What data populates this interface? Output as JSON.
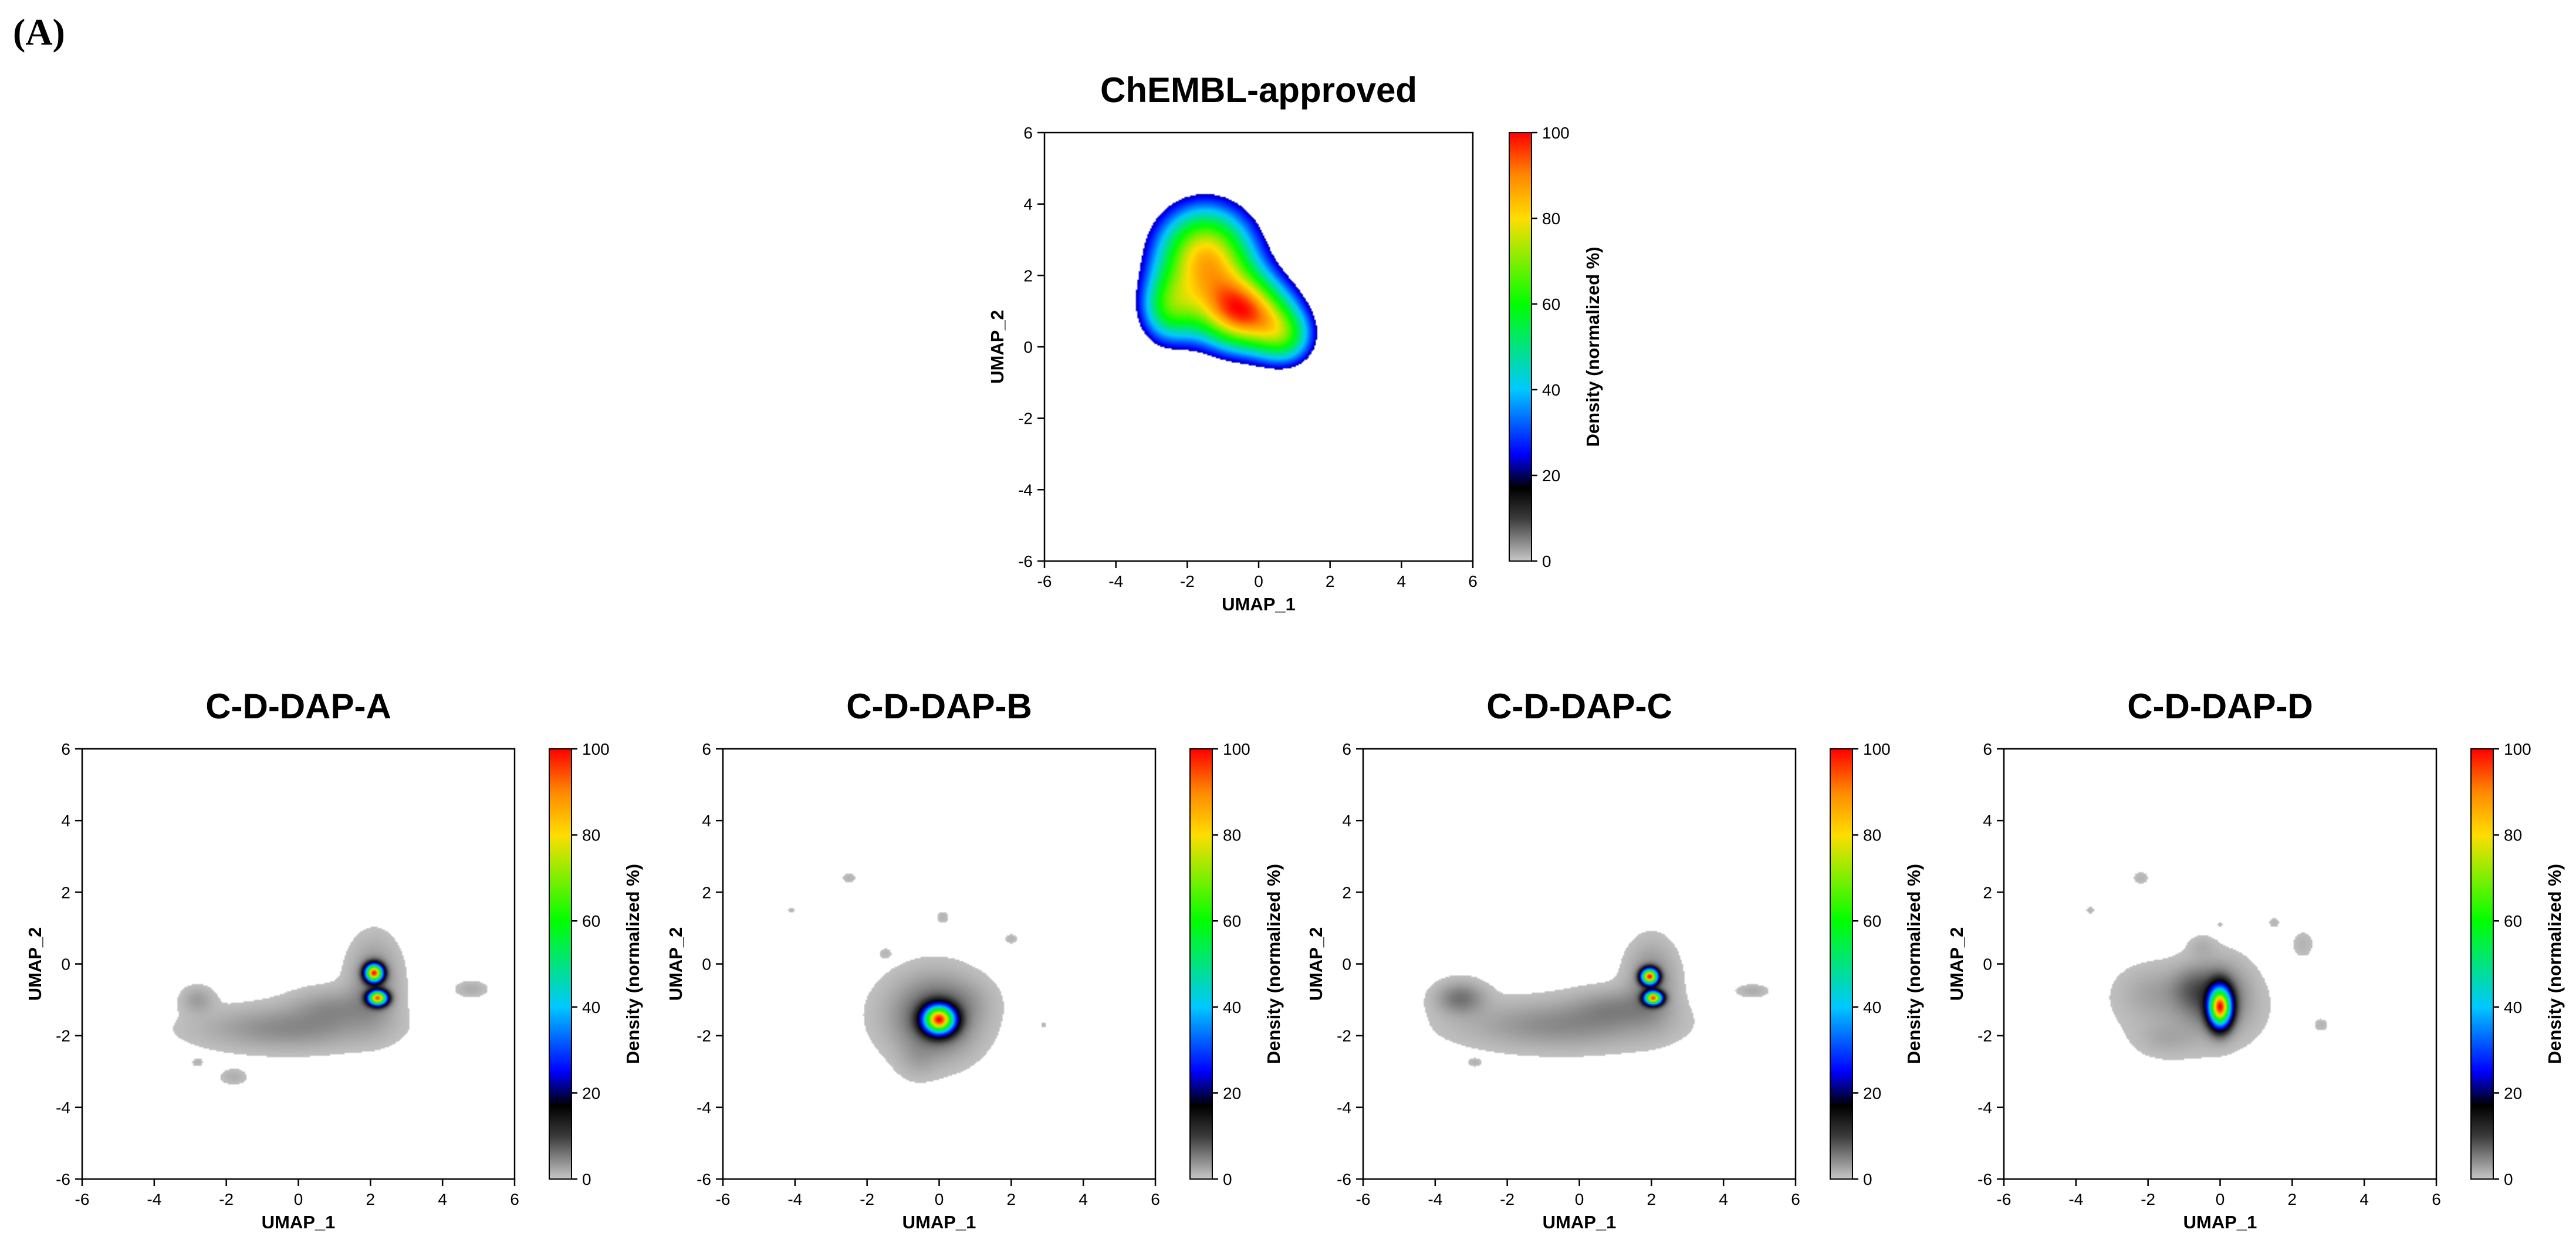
{
  "panel_label": "(A)",
  "colorscale": [
    {
      "v": 0,
      "c": "#c8c8c8"
    },
    {
      "v": 10,
      "c": "#3a3a3a"
    },
    {
      "v": 17,
      "c": "#000000"
    },
    {
      "v": 25,
      "c": "#0000ff"
    },
    {
      "v": 40,
      "c": "#00c8ff"
    },
    {
      "v": 60,
      "c": "#00ff00"
    },
    {
      "v": 80,
      "c": "#ffdd00"
    },
    {
      "v": 90,
      "c": "#ff8800"
    },
    {
      "v": 100,
      "c": "#ff0000"
    }
  ],
  "chart_data": [
    {
      "id": "chembl",
      "type": "heatmap",
      "title": "ChEMBL-approved",
      "xlabel": "UMAP_1",
      "ylabel": "UMAP_2",
      "xlim": [
        -6,
        6
      ],
      "ylim": [
        -6,
        6
      ],
      "xticks": [
        -6,
        -4,
        -2,
        0,
        2,
        4,
        6
      ],
      "yticks": [
        -6,
        -4,
        -2,
        0,
        2,
        4,
        6
      ],
      "colorbar": {
        "label": "Density (normalized %)",
        "ticks": [
          0,
          20,
          40,
          60,
          80,
          100
        ],
        "range": [
          0,
          100
        ]
      },
      "threshold": 0.22,
      "components": [
        {
          "x": -1.5,
          "y": 2.6,
          "sx": 1.05,
          "sy": 1.05,
          "w": 0.85
        },
        {
          "x": -0.4,
          "y": 0.9,
          "sx": 1.0,
          "sy": 0.8,
          "w": 0.9
        },
        {
          "x": -2.6,
          "y": 1.0,
          "sx": 0.6,
          "sy": 0.75,
          "w": 0.45
        },
        {
          "x": 0.8,
          "y": 0.2,
          "sx": 0.6,
          "sy": 0.6,
          "w": 0.4
        }
      ]
    },
    {
      "id": "dap_a",
      "type": "heatmap",
      "title": "C-D-DAP-A",
      "xlabel": "UMAP_1",
      "ylabel": "UMAP_2",
      "xlim": [
        -6,
        6
      ],
      "ylim": [
        -6,
        6
      ],
      "xticks": [
        -6,
        -4,
        -2,
        0,
        2,
        4,
        6
      ],
      "yticks": [
        -6,
        -4,
        -2,
        0,
        2,
        4,
        6
      ],
      "colorbar": {
        "label": "Density (normalized %)",
        "ticks": [
          0,
          20,
          40,
          60,
          80,
          100
        ],
        "range": [
          0,
          100
        ]
      },
      "threshold": 0.006,
      "components": [
        {
          "x": 2.1,
          "y": -0.25,
          "sx": 0.16,
          "sy": 0.16,
          "w": 1.0
        },
        {
          "x": 2.2,
          "y": -0.95,
          "sx": 0.17,
          "sy": 0.13,
          "w": 0.95
        },
        {
          "x": 2.1,
          "y": -0.5,
          "sx": 0.45,
          "sy": 0.75,
          "w": 0.05
        },
        {
          "x": -0.3,
          "y": -1.8,
          "sx": 1.6,
          "sy": 0.4,
          "w": 0.045
        },
        {
          "x": 1.0,
          "y": -1.2,
          "sx": 0.8,
          "sy": 0.35,
          "w": 0.035
        },
        {
          "x": -2.8,
          "y": -1.0,
          "sx": 0.3,
          "sy": 0.25,
          "w": 0.03
        },
        {
          "x": 4.8,
          "y": -0.7,
          "sx": 0.3,
          "sy": 0.15,
          "w": 0.02
        },
        {
          "x": -1.8,
          "y": -3.15,
          "sx": 0.25,
          "sy": 0.15,
          "w": 0.018
        },
        {
          "x": -2.8,
          "y": -2.75,
          "sx": 0.1,
          "sy": 0.08,
          "w": 0.015
        }
      ]
    },
    {
      "id": "dap_b",
      "type": "heatmap",
      "title": "C-D-DAP-B",
      "xlabel": "UMAP_1",
      "ylabel": "UMAP_2",
      "xlim": [
        -6,
        6
      ],
      "ylim": [
        -6,
        6
      ],
      "xticks": [
        -6,
        -4,
        -2,
        0,
        2,
        4,
        6
      ],
      "yticks": [
        -6,
        -4,
        -2,
        0,
        2,
        4,
        6
      ],
      "colorbar": {
        "label": "Density (normalized %)",
        "ticks": [
          0,
          20,
          40,
          60,
          80,
          100
        ],
        "range": [
          0,
          100
        ]
      },
      "threshold": 0.006,
      "components": [
        {
          "x": 0.0,
          "y": -1.55,
          "sx": 0.28,
          "sy": 0.25,
          "w": 1.0
        },
        {
          "x": -0.1,
          "y": -1.5,
          "sx": 0.7,
          "sy": 0.7,
          "w": 0.08
        },
        {
          "x": -0.3,
          "y": -1.4,
          "sx": 1.1,
          "sy": 0.8,
          "w": 0.02
        },
        {
          "x": -0.6,
          "y": -2.7,
          "sx": 0.35,
          "sy": 0.35,
          "w": 0.015
        },
        {
          "x": 0.8,
          "y": -1.0,
          "sx": 0.5,
          "sy": 0.4,
          "w": 0.012
        },
        {
          "x": -2.5,
          "y": 2.4,
          "sx": 0.13,
          "sy": 0.1,
          "w": 0.015
        },
        {
          "x": 0.1,
          "y": 1.3,
          "sx": 0.12,
          "sy": 0.12,
          "w": 0.015
        },
        {
          "x": 2.0,
          "y": 0.7,
          "sx": 0.12,
          "sy": 0.1,
          "w": 0.015
        },
        {
          "x": -4.1,
          "y": 1.5,
          "sx": 0.07,
          "sy": 0.06,
          "w": 0.015
        },
        {
          "x": 2.9,
          "y": -1.7,
          "sx": 0.06,
          "sy": 0.06,
          "w": 0.015
        },
        {
          "x": -1.5,
          "y": 0.3,
          "sx": 0.12,
          "sy": 0.1,
          "w": 0.012
        }
      ]
    },
    {
      "id": "dap_c",
      "type": "heatmap",
      "title": "C-D-DAP-C",
      "xlabel": "UMAP_1",
      "ylabel": "UMAP_2",
      "xlim": [
        -6,
        6
      ],
      "ylim": [
        -6,
        6
      ],
      "xticks": [
        -6,
        -4,
        -2,
        0,
        2,
        4,
        6
      ],
      "yticks": [
        -6,
        -4,
        -2,
        0,
        2,
        4,
        6
      ],
      "colorbar": {
        "label": "Density (normalized %)",
        "ticks": [
          0,
          20,
          40,
          60,
          80,
          100
        ],
        "range": [
          0,
          100
        ]
      },
      "threshold": 0.006,
      "components": [
        {
          "x": 1.95,
          "y": -0.35,
          "sx": 0.15,
          "sy": 0.14,
          "w": 1.0
        },
        {
          "x": 2.05,
          "y": -0.95,
          "sx": 0.16,
          "sy": 0.12,
          "w": 0.95
        },
        {
          "x": 2.0,
          "y": -0.5,
          "sx": 0.45,
          "sy": 0.7,
          "w": 0.05
        },
        {
          "x": -0.5,
          "y": -1.7,
          "sx": 1.8,
          "sy": 0.45,
          "w": 0.045
        },
        {
          "x": 1.0,
          "y": -1.2,
          "sx": 0.8,
          "sy": 0.35,
          "w": 0.035
        },
        {
          "x": -3.3,
          "y": -0.95,
          "sx": 0.45,
          "sy": 0.3,
          "w": 0.06
        },
        {
          "x": 4.8,
          "y": -0.75,
          "sx": 0.3,
          "sy": 0.12,
          "w": 0.02
        },
        {
          "x": -2.9,
          "y": -2.75,
          "sx": 0.12,
          "sy": 0.08,
          "w": 0.015
        }
      ]
    },
    {
      "id": "dap_d",
      "type": "heatmap",
      "title": "C-D-DAP-D",
      "xlabel": "UMAP_1",
      "ylabel": "UMAP_2",
      "xlim": [
        -6,
        6
      ],
      "ylim": [
        -6,
        6
      ],
      "xticks": [
        -6,
        -4,
        -2,
        0,
        2,
        4,
        6
      ],
      "yticks": [
        -6,
        -4,
        -2,
        0,
        2,
        4,
        6
      ],
      "colorbar": {
        "label": "Density (normalized %)",
        "ticks": [
          0,
          20,
          40,
          60,
          80,
          100
        ],
        "range": [
          0,
          100
        ]
      },
      "threshold": 0.006,
      "components": [
        {
          "x": 0.0,
          "y": -1.2,
          "sx": 0.2,
          "sy": 0.35,
          "w": 1.0
        },
        {
          "x": -0.1,
          "y": -0.9,
          "sx": 0.55,
          "sy": 0.6,
          "w": 0.08
        },
        {
          "x": -0.8,
          "y": -0.7,
          "sx": 0.4,
          "sy": 0.4,
          "w": 0.04
        },
        {
          "x": -0.8,
          "y": -1.3,
          "sx": 1.3,
          "sy": 0.8,
          "w": 0.02
        },
        {
          "x": -1.9,
          "y": -0.75,
          "sx": 0.6,
          "sy": 0.45,
          "w": 0.018
        },
        {
          "x": -1.5,
          "y": -2.1,
          "sx": 0.5,
          "sy": 0.3,
          "w": 0.015
        },
        {
          "x": -2.2,
          "y": 2.4,
          "sx": 0.15,
          "sy": 0.12,
          "w": 0.015
        },
        {
          "x": -3.6,
          "y": 1.5,
          "sx": 0.08,
          "sy": 0.07,
          "w": 0.015
        },
        {
          "x": 1.5,
          "y": 1.15,
          "sx": 0.1,
          "sy": 0.09,
          "w": 0.015
        },
        {
          "x": 2.3,
          "y": 0.55,
          "sx": 0.2,
          "sy": 0.25,
          "w": 0.015
        },
        {
          "x": 0.0,
          "y": 1.1,
          "sx": 0.06,
          "sy": 0.06,
          "w": 0.012
        },
        {
          "x": 2.8,
          "y": -1.7,
          "sx": 0.13,
          "sy": 0.12,
          "w": 0.015
        },
        {
          "x": -0.5,
          "y": 0.5,
          "sx": 0.25,
          "sy": 0.2,
          "w": 0.015
        }
      ]
    }
  ]
}
